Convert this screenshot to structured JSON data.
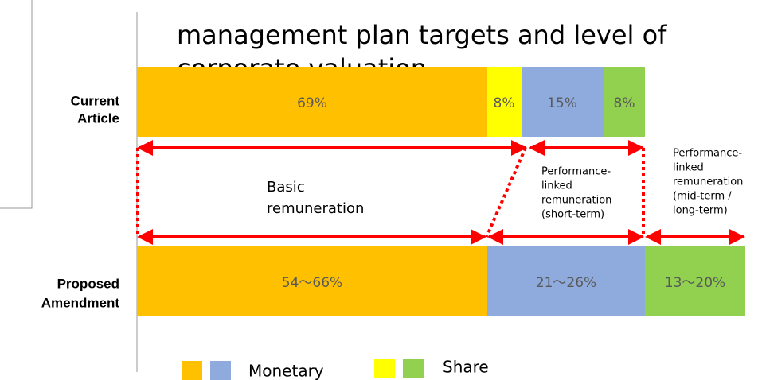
{
  "title": [
    "management plan targets and level of",
    "corporate valuation"
  ],
  "rows": [
    {
      "label": [
        "Current",
        "Article"
      ],
      "segments": [
        "69%",
        "8%",
        "15%",
        "8%"
      ]
    },
    {
      "label": [
        "Proposed",
        "Amendment"
      ],
      "segments": [
        "54～66%",
        "21～26%",
        "13～20%"
      ]
    }
  ],
  "annotations": {
    "basic": [
      "Basic",
      "remuneration"
    ],
    "short_term": [
      "Performance-",
      "linked",
      "remuneration",
      "(short-term)"
    ],
    "mid_long_term": [
      "Performance-",
      "linked",
      "remuneration",
      "(mid-term /",
      "long-term)"
    ]
  },
  "legend": [
    "Monetary",
    "Share"
  ]
}
